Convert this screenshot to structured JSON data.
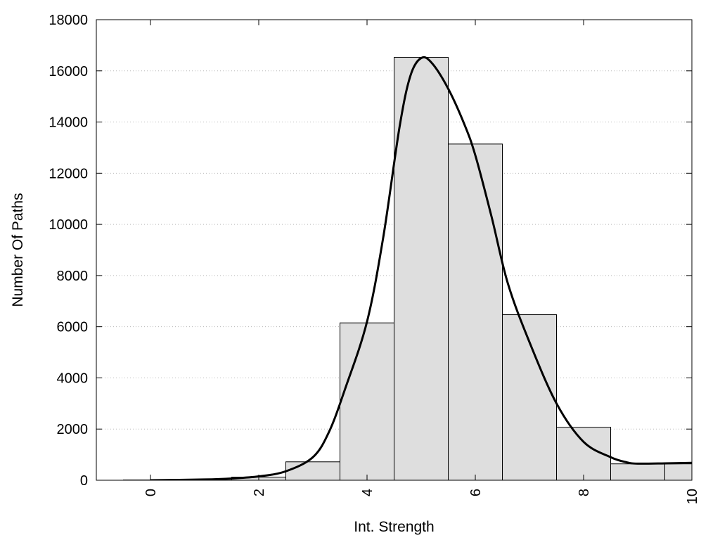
{
  "chart_data": {
    "type": "bar",
    "title": "",
    "xlabel": "Int. Strength",
    "ylabel": "Number Of Paths",
    "xlim": [
      -1,
      10
    ],
    "ylim": [
      0,
      18000
    ],
    "x_ticks": [
      0,
      2,
      4,
      6,
      8,
      10
    ],
    "x_tick_labels": [
      "0",
      "2",
      "4",
      "6",
      "8",
      "10"
    ],
    "y_ticks": [
      0,
      2000,
      4000,
      6000,
      8000,
      10000,
      12000,
      14000,
      16000,
      18000
    ],
    "y_tick_labels": [
      "0",
      "2000",
      "4000",
      "6000",
      "8000",
      "10000",
      "12000",
      "14000",
      "16000",
      "18000"
    ],
    "grid": true,
    "bar_fill": "#dedede",
    "line_color": "#000000",
    "series": [
      {
        "type": "histogram",
        "bins": [
          {
            "x0": -0.5,
            "x1": 0.5,
            "value": 10
          },
          {
            "x0": 0.5,
            "x1": 1.5,
            "value": 40
          },
          {
            "x0": 1.5,
            "x1": 2.5,
            "value": 120
          },
          {
            "x0": 2.5,
            "x1": 3.5,
            "value": 720
          },
          {
            "x0": 3.5,
            "x1": 4.5,
            "value": 6150
          },
          {
            "x0": 4.5,
            "x1": 5.5,
            "value": 16530
          },
          {
            "x0": 5.5,
            "x1": 6.5,
            "value": 13140
          },
          {
            "x0": 6.5,
            "x1": 7.5,
            "value": 6470
          },
          {
            "x0": 7.5,
            "x1": 8.5,
            "value": 2070
          },
          {
            "x0": 8.5,
            "x1": 9.5,
            "value": 640
          },
          {
            "x0": 9.5,
            "x1": 10.5,
            "value": 640
          }
        ]
      },
      {
        "type": "line",
        "x": [
          0,
          1,
          1.5,
          2,
          2.5,
          3,
          3.3,
          3.6,
          4,
          4.3,
          4.6,
          4.8,
          5,
          5.2,
          5.5,
          5.8,
          6,
          6.3,
          6.6,
          7,
          7.5,
          8,
          8.5,
          8.8,
          9,
          9.5,
          10
        ],
        "y": [
          0,
          30,
          70,
          150,
          350,
          900,
          1900,
          3600,
          6200,
          9500,
          13800,
          15800,
          16500,
          16300,
          15300,
          13900,
          12700,
          10300,
          7700,
          5400,
          3000,
          1500,
          900,
          700,
          650,
          660,
          680
        ]
      }
    ]
  }
}
